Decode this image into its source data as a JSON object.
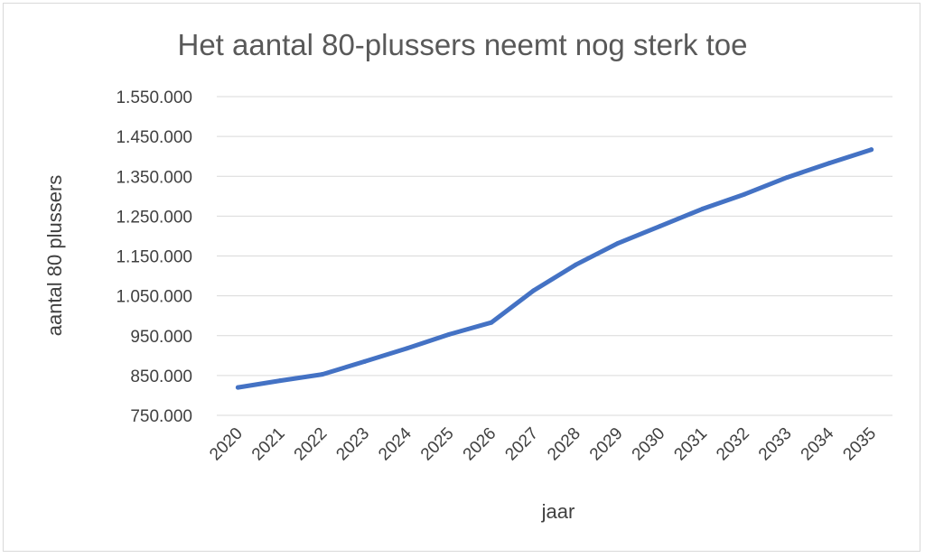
{
  "chart_data": {
    "type": "line",
    "title": "Het aantal 80-plussers neemt nog sterk toe",
    "xlabel": "jaar",
    "ylabel": "aantal 80 plussers",
    "categories": [
      "2020",
      "2021",
      "2022",
      "2023",
      "2024",
      "2025",
      "2026",
      "2027",
      "2028",
      "2029",
      "2030",
      "2031",
      "2032",
      "2033",
      "2034",
      "2035"
    ],
    "y_ticks": [
      "750.000",
      "850.000",
      "950.000",
      "1.050.000",
      "1.150.000",
      "1.250.000",
      "1.350.000",
      "1.450.000",
      "1.550.000"
    ],
    "ylim": [
      750000,
      1550000
    ],
    "series": [
      {
        "values": [
          820000,
          837000,
          853000,
          885000,
          918000,
          953000,
          983000,
          1063000,
          1128000,
          1182000,
          1225000,
          1268000,
          1305000,
          1347000,
          1383000,
          1417000
        ],
        "color": "#4472c4"
      }
    ],
    "grid": true,
    "legend": "none"
  }
}
